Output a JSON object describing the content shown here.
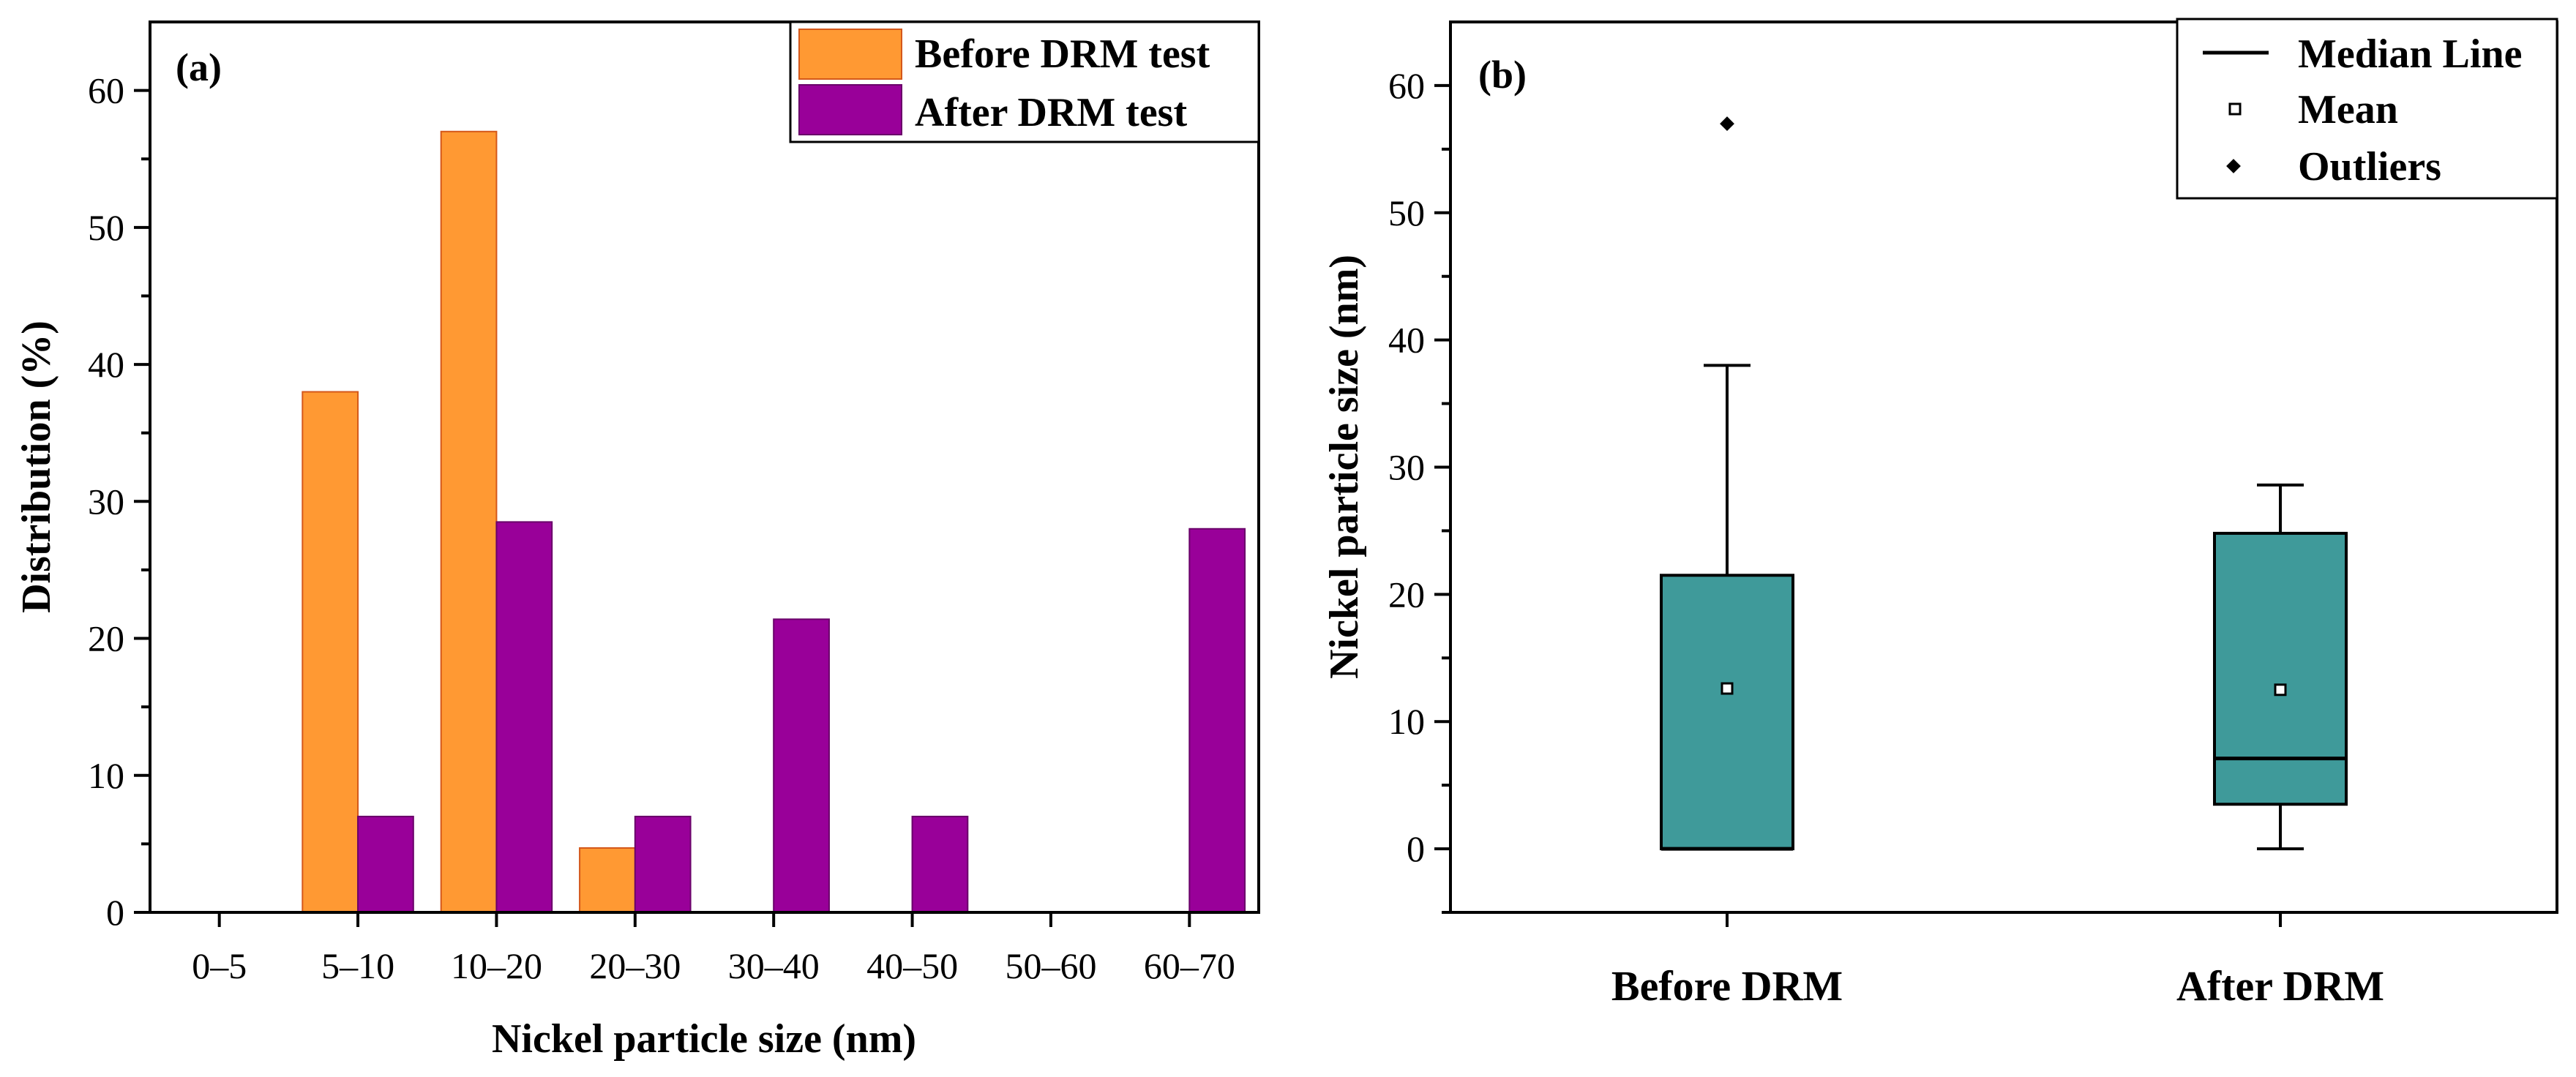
{
  "chart_data": [
    {
      "type": "bar",
      "panel": "(a)",
      "categories": [
        "0–5",
        "5–10",
        "10–20",
        "20–30",
        "30–40",
        "40–50",
        "50–60",
        "60–70"
      ],
      "series": [
        {
          "name": "Before DRM test",
          "color": "#FF9933",
          "edge": "#D4581A",
          "values": [
            0,
            38,
            57,
            4.7,
            0,
            0,
            0,
            0
          ]
        },
        {
          "name": "After DRM test",
          "color": "#990099",
          "edge": "#6A006A",
          "values": [
            0,
            7,
            28.5,
            7,
            21.4,
            7,
            0,
            28
          ]
        }
      ],
      "xlabel": "Nickel particle size (nm)",
      "ylabel": "Distribution (%)",
      "ylim": [
        0,
        65
      ],
      "yticks": [
        "0",
        "10",
        "20",
        "30",
        "40",
        "50",
        "60"
      ],
      "legend": "top-right"
    },
    {
      "type": "box",
      "panel": "(b)",
      "categories": [
        "Before DRM",
        "After DRM"
      ],
      "boxes": [
        {
          "name": "Before DRM",
          "q1": 0,
          "median": 0,
          "q3": 21.5,
          "whisker_low": 0,
          "whisker_high": 38,
          "mean": 12.6,
          "outliers": [
            57
          ]
        },
        {
          "name": "After DRM",
          "q1": 3.5,
          "median": 7.1,
          "q3": 24.8,
          "whisker_low": 0,
          "whisker_high": 28.6,
          "mean": 12.5,
          "outliers": []
        }
      ],
      "box_color": "#3F9A9A",
      "ylabel": "Nickel particle size (nm)",
      "ylim": [
        -5,
        65
      ],
      "yticks": [
        "0",
        "10",
        "20",
        "30",
        "40",
        "50",
        "60"
      ],
      "legend": {
        "position": "top-right",
        "items": [
          "Median Line",
          "Mean",
          "Outliers"
        ]
      }
    }
  ]
}
